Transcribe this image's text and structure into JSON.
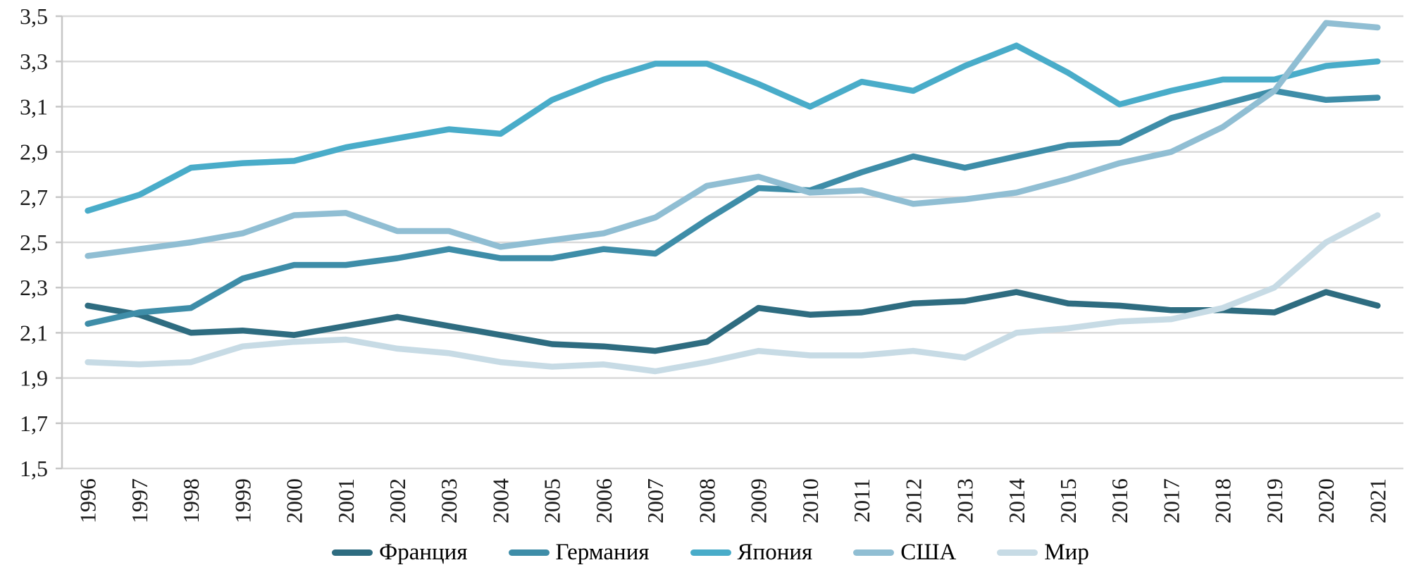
{
  "chart_data": {
    "type": "line",
    "title": "",
    "xlabel": "",
    "ylabel": "",
    "x_labels": [
      "1996",
      "1997",
      "1998",
      "1999",
      "2000",
      "2001",
      "2002",
      "2003",
      "2004",
      "2005",
      "2006",
      "2007",
      "2008",
      "2009",
      "2010",
      "2011",
      "2012",
      "2013",
      "2014",
      "2015",
      "2016",
      "2017",
      "2018",
      "2019",
      "2020",
      "2021"
    ],
    "ylim": [
      1.5,
      3.5
    ],
    "y_tick_step": 0.2,
    "y_tick_labels_top_to_bottom": [
      "3,5",
      "3,3",
      "3,1",
      "2,9",
      "2,7",
      "2,5",
      "2,3",
      "2,1",
      "1,9",
      "1,7",
      "1,5"
    ],
    "decimal_separator": ",",
    "grid": "horizontal",
    "legend_position": "bottom",
    "colors": {
      "grid": "#d9d9d9",
      "axis": "#c6c6c6",
      "tick_text": "#1a1a1a"
    },
    "series": [
      {
        "name": "Франция",
        "color": "#2E6C80",
        "values": [
          2.22,
          2.18,
          2.1,
          2.11,
          2.09,
          2.13,
          2.17,
          2.13,
          2.09,
          2.05,
          2.04,
          2.02,
          2.06,
          2.21,
          2.18,
          2.19,
          2.23,
          2.24,
          2.28,
          2.23,
          2.22,
          2.2,
          2.2,
          2.19,
          2.28,
          2.22
        ]
      },
      {
        "name": "Германия",
        "color": "#3E8DA8",
        "values": [
          2.14,
          2.19,
          2.21,
          2.34,
          2.4,
          2.4,
          2.43,
          2.47,
          2.43,
          2.43,
          2.47,
          2.45,
          2.6,
          2.74,
          2.73,
          2.81,
          2.88,
          2.83,
          2.88,
          2.93,
          2.94,
          3.05,
          3.11,
          3.17,
          3.13,
          3.14
        ]
      },
      {
        "name": "Япония",
        "color": "#49ACC9",
        "values": [
          2.64,
          2.71,
          2.83,
          2.85,
          2.86,
          2.92,
          2.96,
          3.0,
          2.98,
          3.13,
          3.22,
          3.29,
          3.29,
          3.2,
          3.1,
          3.21,
          3.17,
          3.28,
          3.37,
          3.25,
          3.11,
          3.17,
          3.22,
          3.22,
          3.28,
          3.3
        ]
      },
      {
        "name": "США",
        "color": "#90BED3",
        "values": [
          2.44,
          2.47,
          2.5,
          2.54,
          2.62,
          2.63,
          2.55,
          2.55,
          2.48,
          2.51,
          2.54,
          2.61,
          2.75,
          2.79,
          2.72,
          2.73,
          2.67,
          2.69,
          2.72,
          2.78,
          2.85,
          2.9,
          3.01,
          3.17,
          3.47,
          3.45
        ]
      },
      {
        "name": "Мир",
        "color": "#C7DBE5",
        "values": [
          1.97,
          1.96,
          1.97,
          2.04,
          2.06,
          2.07,
          2.03,
          2.01,
          1.97,
          1.95,
          1.96,
          1.93,
          1.97,
          2.02,
          2.0,
          2.0,
          2.02,
          1.99,
          2.1,
          2.12,
          2.15,
          2.16,
          2.21,
          2.3,
          2.5,
          2.62
        ]
      }
    ]
  }
}
